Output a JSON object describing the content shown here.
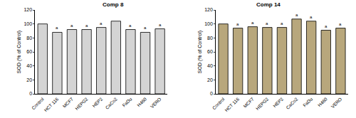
{
  "chart_data": [
    {
      "type": "bar",
      "title": "Comp 8",
      "categories": [
        "Control",
        "HCT 116",
        "MCF7",
        "HEPG2",
        "HEP2",
        "CaCo2",
        "FaDu",
        "H460",
        "VERO"
      ],
      "values": [
        100,
        88,
        92,
        92,
        95,
        104,
        92,
        88,
        93
      ],
      "color": "#d4d4d4",
      "y_label": "SOD (% of Control)",
      "ylim": [
        0,
        120
      ],
      "yticks": [
        0,
        20,
        40,
        60,
        80,
        100,
        120
      ],
      "grid": false,
      "annotations": [
        {
          "x": "HCT 116",
          "text": "a"
        },
        {
          "x": "MCF7",
          "text": "a"
        },
        {
          "x": "HEPG2",
          "text": "a"
        },
        {
          "x": "HEP2",
          "text": "a"
        },
        {
          "x": "FaDu",
          "text": "a"
        },
        {
          "x": "H460",
          "text": "a"
        },
        {
          "x": "VERO",
          "text": "a"
        }
      ]
    },
    {
      "type": "bar",
      "title": "Comp 14",
      "categories": [
        "Control",
        "HCT 116",
        "MCF7",
        "HEPG2",
        "HEP2",
        "CaCo2",
        "FaDu",
        "H460",
        "VERO"
      ],
      "values": [
        100,
        94,
        96,
        95,
        95,
        107,
        104,
        91,
        94
      ],
      "color": "#b8a77c",
      "y_label": "SOD (% of Control)",
      "ylim": [
        0,
        120
      ],
      "yticks": [
        0,
        20,
        40,
        60,
        80,
        100,
        120
      ],
      "grid": false,
      "annotations": [
        {
          "x": "HCT 116",
          "text": "a"
        },
        {
          "x": "MCF7",
          "text": "a"
        },
        {
          "x": "HEPG2",
          "text": "a"
        },
        {
          "x": "HEP2",
          "text": "a"
        },
        {
          "x": "CaCo2",
          "text": "a"
        },
        {
          "x": "FaDu",
          "text": "a"
        },
        {
          "x": "H460",
          "text": "a"
        },
        {
          "x": "VERO",
          "text": "a"
        }
      ]
    }
  ]
}
